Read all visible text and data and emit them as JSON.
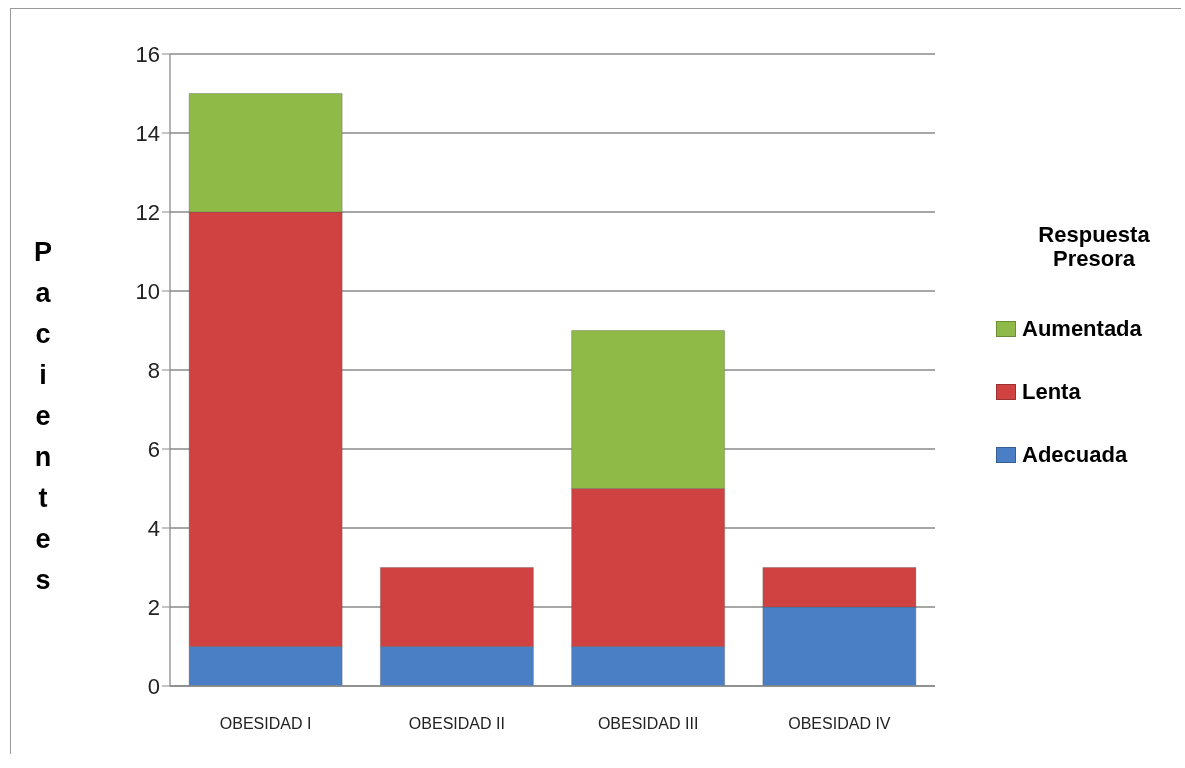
{
  "chart_data": {
    "type": "bar",
    "ylabel": "Pacientes",
    "legend_title": "Respuesta Presora",
    "categories": [
      "OBESIDAD I",
      "OBESIDAD II",
      "OBESIDAD III",
      "OBESIDAD IV"
    ],
    "stacked": true,
    "series": [
      {
        "name": "Adecuada",
        "color": "#4a7fc6",
        "values": [
          1,
          1,
          1,
          2
        ]
      },
      {
        "name": "Lenta",
        "color": "#d04242",
        "values": [
          11,
          2,
          4,
          1
        ]
      },
      {
        "name": "Aumentada",
        "color": "#8fba48",
        "values": [
          3,
          null,
          4,
          null
        ]
      }
    ],
    "ylim": [
      0,
      16
    ],
    "yticks": [
      0,
      2,
      4,
      6,
      8,
      10,
      12,
      14,
      16
    ],
    "grid": "y",
    "legend": "right"
  }
}
